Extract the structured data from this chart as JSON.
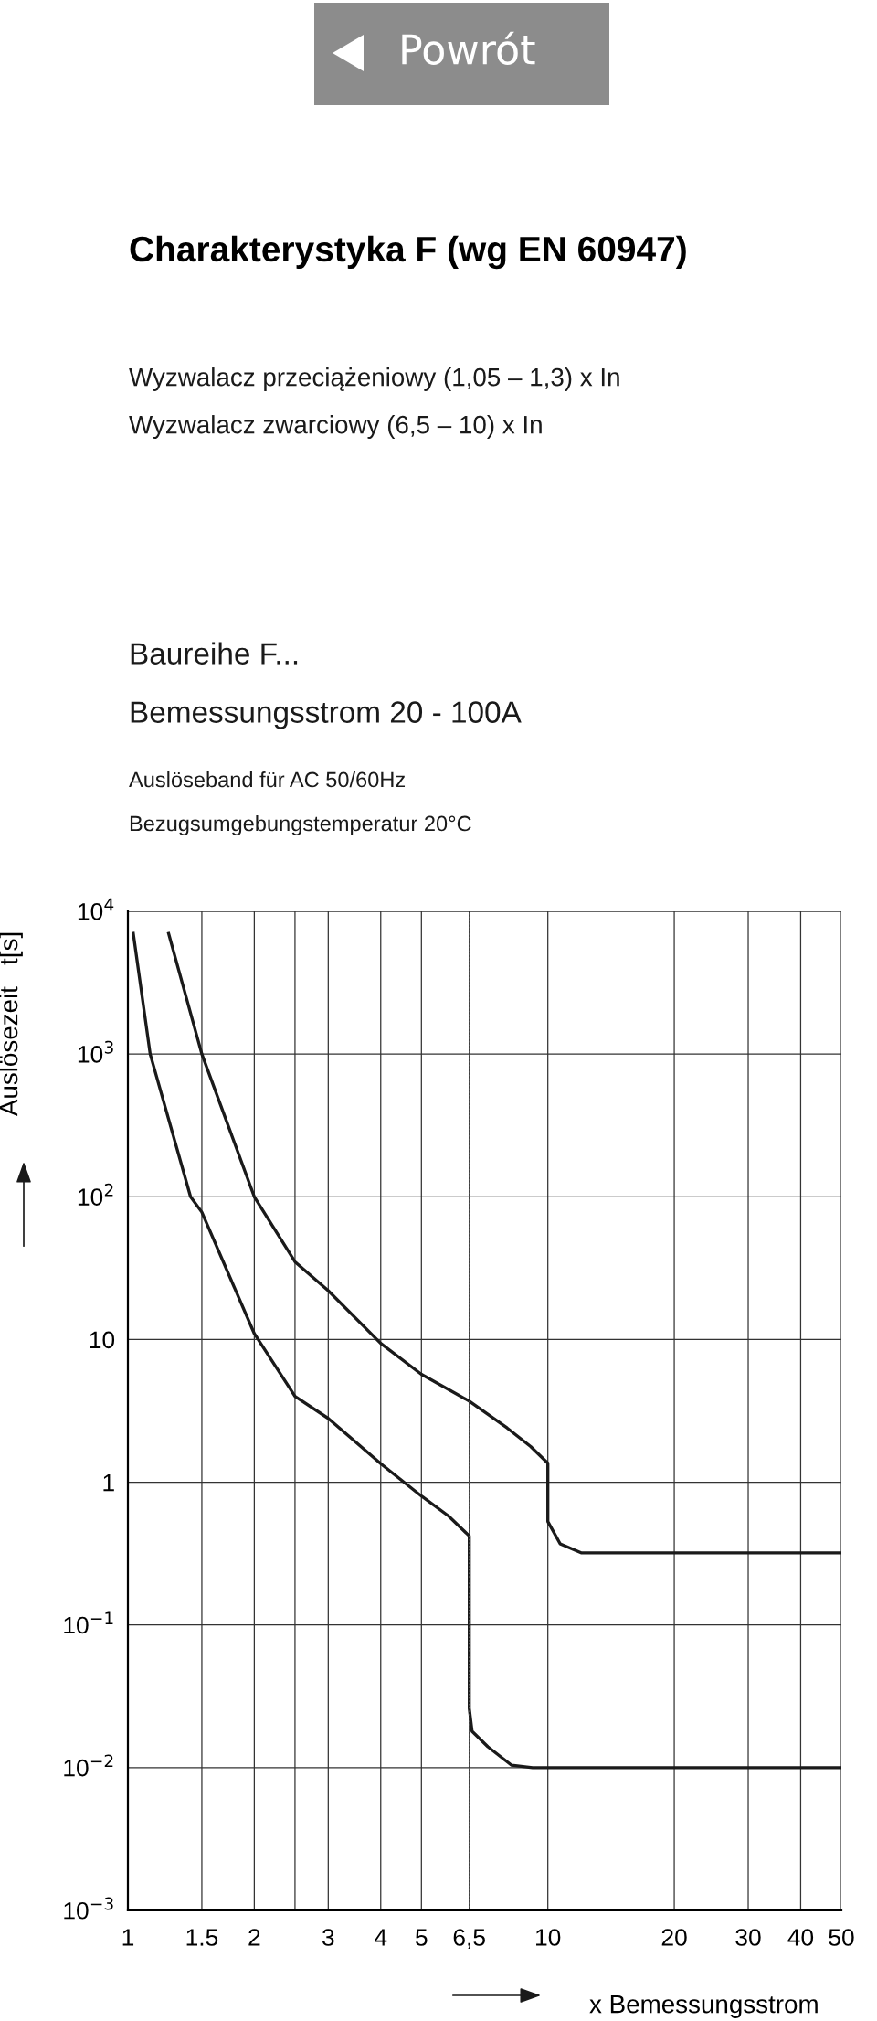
{
  "chart_data": {
    "type": "line",
    "title": "Charakterystyka F (wg EN 60947)",
    "annotations": [
      "Powrót",
      "Wyzwalacz przeciążeniowy (1,05 – 1,3) x In",
      "Wyzwalacz zwarciowy (6,5 – 10) x In",
      "Baureihe F...",
      "Bemessungsstrom 20 - 100A",
      "Auslöseband für AC 50/60Hz",
      "Bezugsumgebungstemperatur 20°C"
    ],
    "xlabel": "x Bemessungsstrom",
    "ylabel": "Auslösezeit   t[s]",
    "log": "xy",
    "xlim": [
      1,
      50
    ],
    "ylim": [
      0.001,
      10000
    ],
    "xticks": [
      1,
      1.5,
      2,
      {
        "value": 2.5,
        "label": null
      },
      3,
      4,
      5,
      {
        "value": 6.5,
        "label": "6,5"
      },
      10,
      20,
      30,
      40,
      50
    ],
    "yticks": [
      {
        "value": 0.001,
        "label": "10$^{−3}$"
      },
      {
        "value": 0.01,
        "label": "10$^{−2}$"
      },
      {
        "value": 0.1,
        "label": "10$^{−1}$"
      },
      1,
      10,
      {
        "value": 100,
        "label": "10$^{2}$"
      },
      {
        "value": 1000,
        "label": "10$^{3}$"
      },
      {
        "value": 10000,
        "label": "10$^{4}$"
      }
    ],
    "grid": true,
    "legend": false,
    "marker": "none",
    "line_style": "solid",
    "ref_lines": [
      {
        "axis": "x",
        "value": 6.5,
        "label": null,
        "color": "#555555",
        "line_style": "dotted"
      }
    ],
    "series": [
      {
        "color": "#1a1a1a",
        "x": [
          1.03,
          1.13,
          1.41,
          1.5,
          2,
          2.5,
          3,
          4,
          5,
          5.8,
          6.5,
          6.5,
          6.6,
          7.2,
          8.2,
          9.2,
          50
        ],
        "values": [
          7000,
          1000,
          100,
          78,
          11,
          4,
          2.8,
          1.35,
          0.8,
          0.58,
          0.42,
          0.026,
          0.018,
          0.014,
          0.0104,
          0.01,
          0.01
        ]
      },
      {
        "color": "#1a1a1a",
        "x": [
          1.25,
          1.5,
          2,
          2.5,
          3,
          4,
          5,
          6.5,
          8,
          9.1,
          10,
          10,
          10.7,
          12,
          50
        ],
        "values": [
          7000,
          1000,
          100,
          35,
          22,
          9.4,
          5.7,
          3.7,
          2.4,
          1.78,
          1.36,
          0.53,
          0.37,
          0.32,
          0.32
        ]
      }
    ]
  }
}
